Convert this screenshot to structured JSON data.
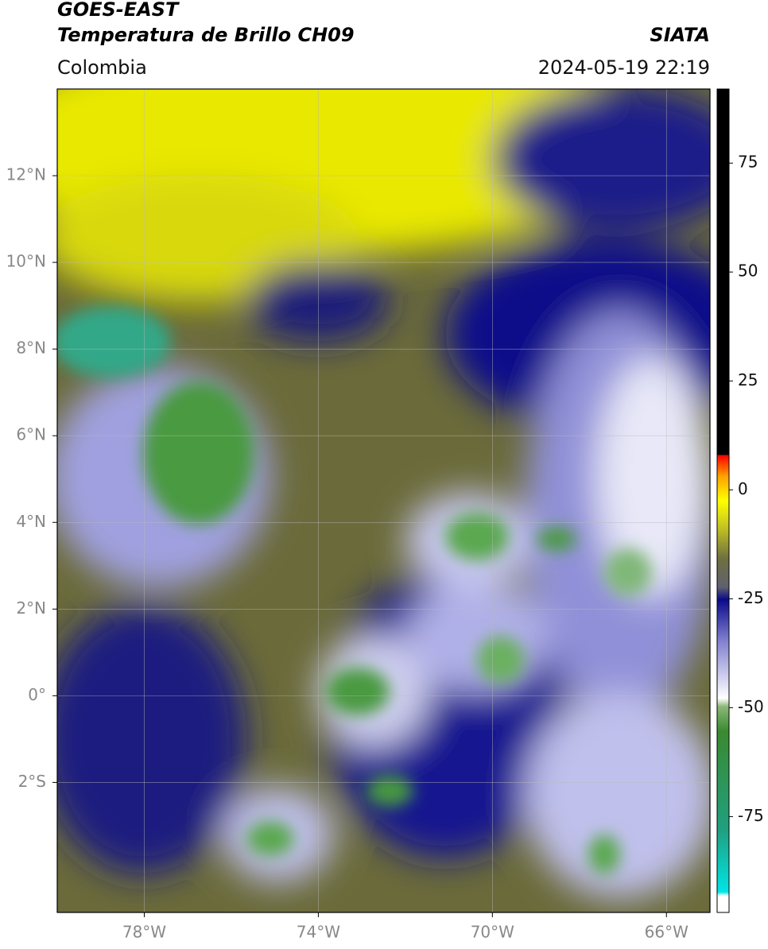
{
  "header": {
    "satellite": "GOES-EAST",
    "product": "Temperatura de Brillo CH09",
    "source": "SIATA",
    "region": "Colombia",
    "datetime": "2024-05-19 22:19"
  },
  "map": {
    "lonlim": [
      -80,
      -65
    ],
    "latlim": [
      -5,
      14
    ],
    "lon_ticks": [
      {
        "value": -78,
        "label": "78°W"
      },
      {
        "value": -74,
        "label": "74°W"
      },
      {
        "value": -70,
        "label": "70°W"
      },
      {
        "value": -66,
        "label": "66°W"
      }
    ],
    "lat_ticks": [
      {
        "value": 12,
        "label": "12°N"
      },
      {
        "value": 10,
        "label": "10°N"
      },
      {
        "value": 8,
        "label": "8°N"
      },
      {
        "value": 6,
        "label": "6°N"
      },
      {
        "value": 4,
        "label": "4°N"
      },
      {
        "value": 2,
        "label": "2°N"
      },
      {
        "value": 0,
        "label": "0°"
      },
      {
        "value": -2,
        "label": "2°S"
      }
    ]
  },
  "colorbar": {
    "lim": [
      -97,
      92
    ],
    "ticks": [
      75,
      50,
      25,
      0,
      -25,
      -50,
      -75
    ]
  }
}
